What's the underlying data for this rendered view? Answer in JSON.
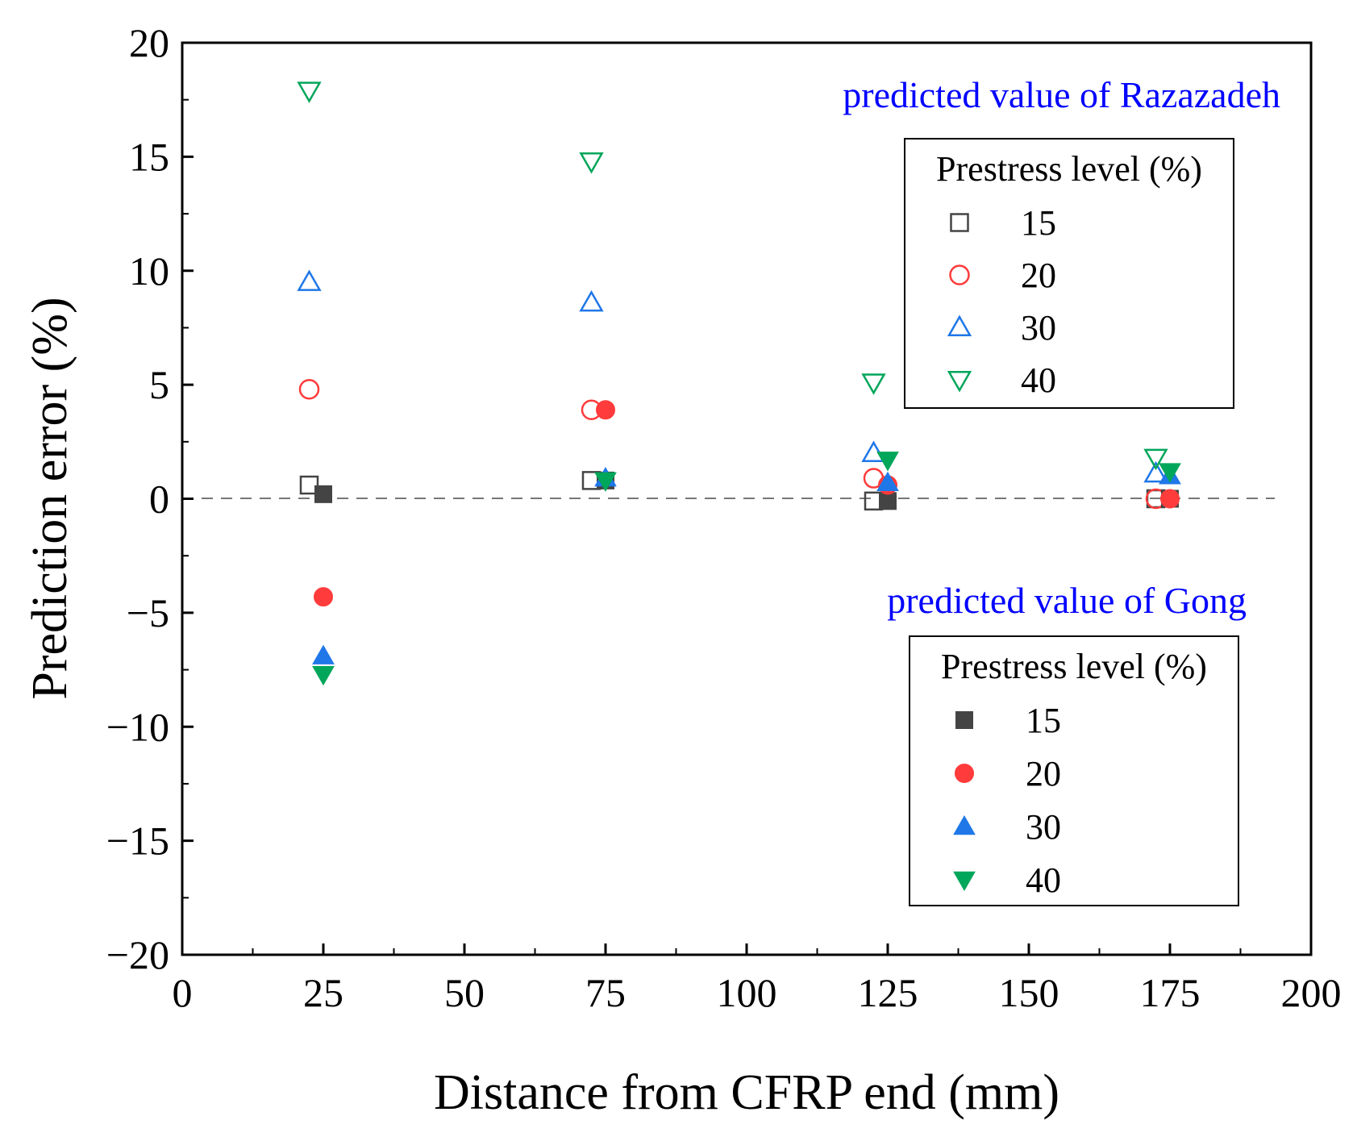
{
  "chart_data": {
    "type": "scatter",
    "title": "",
    "xlabel": "Distance from CFRP end (mm)",
    "ylabel": "Prediction error (%)",
    "xlim": [
      0,
      200
    ],
    "ylim": [
      -20,
      20
    ],
    "xticks": [
      0,
      25,
      50,
      75,
      100,
      125,
      150,
      175,
      200
    ],
    "xtick_labels": [
      "0",
      "25",
      "50",
      "75",
      "100",
      "125",
      "150",
      "175",
      "200"
    ],
    "yticks": [
      -20,
      -15,
      -10,
      -5,
      0,
      5,
      10,
      15,
      20
    ],
    "ytick_labels": [
      "−20",
      "−15",
      "−10",
      "−5",
      "0",
      "5",
      "10",
      "15",
      "20"
    ],
    "reference_line": {
      "y": 0,
      "style": "dashed"
    },
    "grid": false,
    "groups": [
      {
        "annotation": "predicted value of Razazadeh",
        "legend_title": "Prestress level (%)",
        "legend_position": "top-right",
        "filled": false,
        "series": [
          {
            "name": "15",
            "marker": "square",
            "color": "#444444",
            "x": [
              22.5,
              72.5,
              122.5,
              172.5
            ],
            "y": [
              0.6,
              0.8,
              -0.1,
              0.0
            ]
          },
          {
            "name": "20",
            "marker": "circle",
            "color": "#ff3b3b",
            "x": [
              22.5,
              72.5,
              122.5,
              172.5
            ],
            "y": [
              4.8,
              3.9,
              0.9,
              0.0
            ]
          },
          {
            "name": "30",
            "marker": "triangle-up",
            "color": "#1f77e8",
            "x": [
              22.5,
              72.5,
              122.5,
              172.5
            ],
            "y": [
              9.5,
              8.6,
              2.0,
              1.1
            ]
          },
          {
            "name": "40",
            "marker": "triangle-down",
            "color": "#00a65a",
            "x": [
              22.5,
              72.5,
              122.5,
              172.5
            ],
            "y": [
              17.9,
              14.8,
              5.1,
              1.8
            ]
          }
        ]
      },
      {
        "annotation": "predicted value of Gong",
        "legend_title": "Prestress level (%)",
        "legend_position": "lower-right",
        "filled": true,
        "series": [
          {
            "name": "15",
            "marker": "square",
            "color": "#444444",
            "x": [
              25,
              75,
              125,
              175
            ],
            "y": [
              0.2,
              0.8,
              -0.1,
              0.0
            ]
          },
          {
            "name": "20",
            "marker": "circle",
            "color": "#ff3b3b",
            "x": [
              25,
              75,
              125,
              175
            ],
            "y": [
              -4.3,
              3.9,
              0.6,
              0.0
            ]
          },
          {
            "name": "30",
            "marker": "triangle-up",
            "color": "#1f77e8",
            "x": [
              25,
              75,
              125,
              175
            ],
            "y": [
              -6.9,
              0.9,
              0.7,
              1.0
            ]
          },
          {
            "name": "40",
            "marker": "triangle-down",
            "color": "#00a65a",
            "x": [
              25,
              75,
              125,
              175
            ],
            "y": [
              -7.7,
              0.8,
              1.7,
              1.2
            ]
          }
        ]
      }
    ]
  }
}
